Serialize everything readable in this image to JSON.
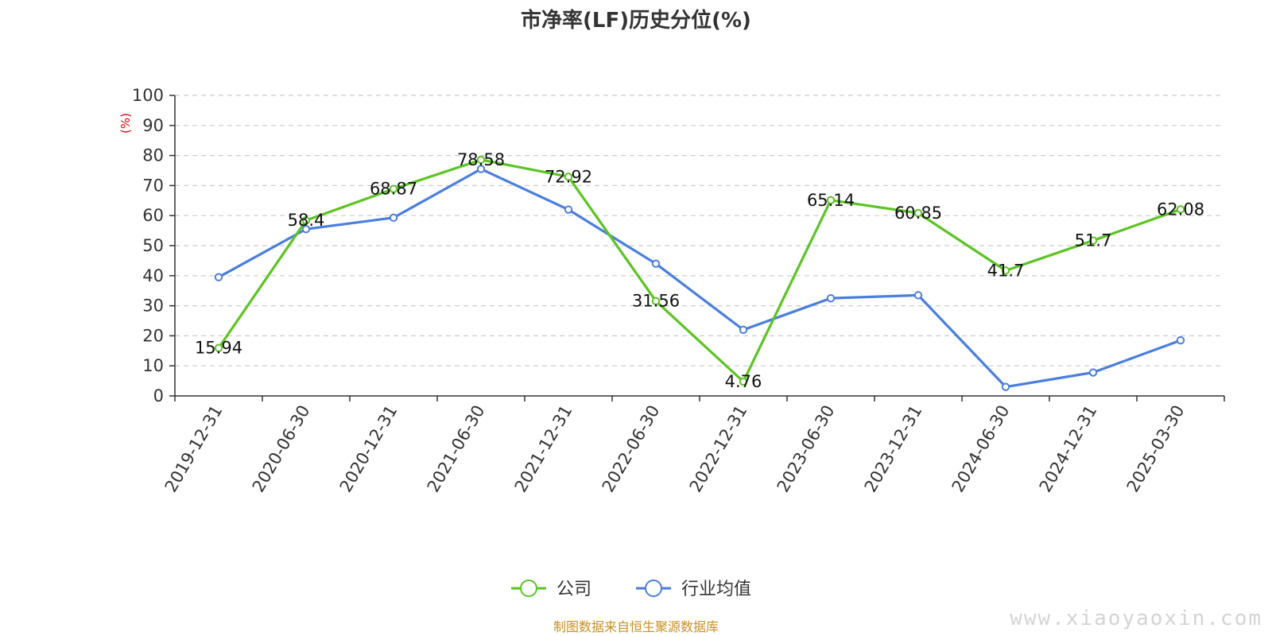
{
  "chart_data": {
    "type": "line",
    "title": "市净率(LF)历史分位(%)",
    "xlabel": "",
    "ylabel": "(%)",
    "ylim": [
      0,
      100
    ],
    "yticks": [
      0,
      10,
      20,
      30,
      40,
      50,
      60,
      70,
      80,
      90,
      100
    ],
    "grid": "horizontal dashed",
    "legend_position": "bottom-center",
    "categories": [
      "2019-12-31",
      "2020-06-30",
      "2020-12-31",
      "2021-06-30",
      "2021-12-31",
      "2022-06-30",
      "2022-12-31",
      "2023-06-30",
      "2023-12-31",
      "2024-06-30",
      "2024-12-31",
      "2025-03-30"
    ],
    "series": [
      {
        "name": "公司",
        "color": "#5cc424",
        "values": [
          15.94,
          58.4,
          68.87,
          78.58,
          72.92,
          31.56,
          4.76,
          65.14,
          60.85,
          41.7,
          51.7,
          62.08
        ],
        "labels": [
          "15.94",
          "58.4",
          "68.87",
          "78.58",
          "72.92",
          "31.56",
          "4.76",
          "65.14",
          "60.85",
          "41.7",
          "51.7",
          "62.08"
        ]
      },
      {
        "name": "行业均值",
        "color": "#4a7fde",
        "values": [
          39.5,
          55.5,
          59.3,
          75.5,
          62,
          44,
          22,
          32.5,
          33.5,
          3,
          7.8,
          18.5
        ]
      }
    ]
  },
  "footer": {
    "source": "制图数据来自恒生聚源数据库",
    "watermark": "www.xiaoyaoxin.com"
  }
}
